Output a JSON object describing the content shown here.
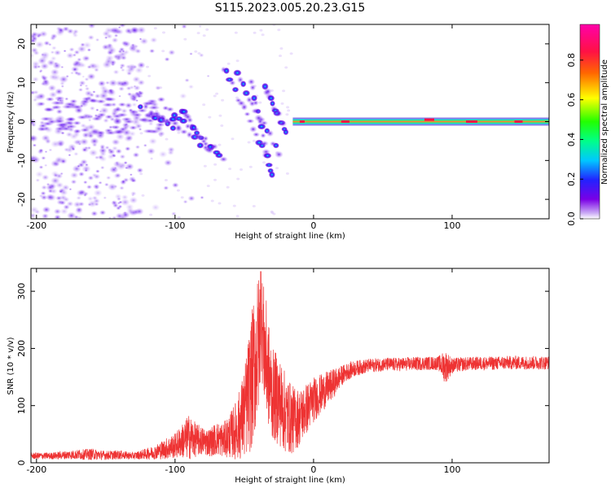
{
  "title": "S115.2023.005.20.23.G15",
  "colors": {
    "snr_line": "#ee3333",
    "frame": "#000000",
    "background": "#ffffff"
  },
  "chart_data": [
    {
      "type": "heatmap",
      "name": "spectrogram",
      "xlabel": "Height of straight line (km)",
      "ylabel": "Frequency (Hz)",
      "xlim": [
        -204,
        170
      ],
      "ylim": [
        -25,
        25
      ],
      "x_ticks": [
        -200,
        -100,
        0,
        100
      ],
      "x_tick_labels": [
        "-200",
        "-100",
        "0",
        "100"
      ],
      "y_ticks": [
        -20,
        -10,
        0,
        10,
        20
      ],
      "y_tick_labels": [
        "-20",
        "-10",
        "0",
        "10",
        "20"
      ],
      "features": [
        {
          "label": "steady carrier line",
          "x_range": [
            -15,
            170
          ],
          "freq": 0,
          "amplitude": 0.6
        },
        {
          "label": "descending multipath streaks",
          "x_range": [
            -125,
            -20
          ],
          "freq_range": [
            -14,
            12
          ],
          "amplitude": 0.3
        },
        {
          "label": "diffuse noise",
          "x_range": [
            -204,
            -125
          ],
          "freq_range": [
            -25,
            25
          ],
          "amplitude": 0.05
        }
      ]
    },
    {
      "type": "colorbar",
      "name": "colorbar",
      "label": "Normalized spectral amplitude",
      "range": [
        0,
        0.98
      ],
      "ticks": [
        0.0,
        0.2,
        0.4,
        0.6,
        0.8
      ],
      "tick_labels": [
        "0.0",
        "0.2",
        "0.4",
        "0.6",
        "0.8"
      ],
      "colormap": "hsv reversed (violet to red)"
    },
    {
      "type": "line",
      "name": "snr",
      "xlabel": "Height of straight line (km)",
      "ylabel": "SNR (10 * v/v)",
      "xlim": [
        -204,
        170
      ],
      "ylim": [
        0,
        340
      ],
      "x_ticks": [
        -200,
        -100,
        0,
        100
      ],
      "x_tick_labels": [
        "-200",
        "-100",
        "0",
        "100"
      ],
      "y_ticks": [
        0,
        100,
        200,
        300
      ],
      "y_tick_labels": [
        "0",
        "100",
        "200",
        "300"
      ],
      "series": [
        {
          "name": "SNR",
          "x": [
            -204,
            -190,
            -175,
            -160,
            -150,
            -140,
            -130,
            -125,
            -120,
            -115,
            -110,
            -105,
            -100,
            -95,
            -90,
            -85,
            -80,
            -75,
            -70,
            -65,
            -60,
            -55,
            -50,
            -45,
            -40,
            -38,
            -35,
            -30,
            -25,
            -20,
            -15,
            -10,
            -5,
            0,
            5,
            10,
            15,
            20,
            25,
            30,
            40,
            50,
            60,
            70,
            80,
            90,
            95,
            100,
            110,
            120,
            130,
            140,
            150,
            160,
            170
          ],
          "y": [
            12,
            12,
            14,
            15,
            13,
            14,
            12,
            14,
            16,
            18,
            22,
            26,
            30,
            38,
            45,
            40,
            38,
            36,
            42,
            40,
            48,
            60,
            85,
            140,
            200,
            250,
            190,
            120,
            110,
            85,
            75,
            80,
            95,
            110,
            120,
            130,
            140,
            152,
            160,
            165,
            170,
            172,
            172,
            173,
            174,
            174,
            168,
            170,
            173,
            174,
            174,
            175,
            175,
            175,
            175
          ],
          "envelope": [
            6,
            6,
            8,
            10,
            8,
            8,
            6,
            8,
            10,
            12,
            16,
            20,
            22,
            30,
            40,
            30,
            25,
            25,
            30,
            30,
            40,
            55,
            80,
            120,
            130,
            85,
            110,
            80,
            80,
            70,
            60,
            50,
            45,
            40,
            35,
            30,
            25,
            18,
            15,
            14,
            12,
            12,
            12,
            12,
            12,
            12,
            30,
            14,
            12,
            12,
            12,
            12,
            12,
            12,
            12
          ],
          "peak_max": 335,
          "peak_x": -38
        }
      ]
    }
  ]
}
